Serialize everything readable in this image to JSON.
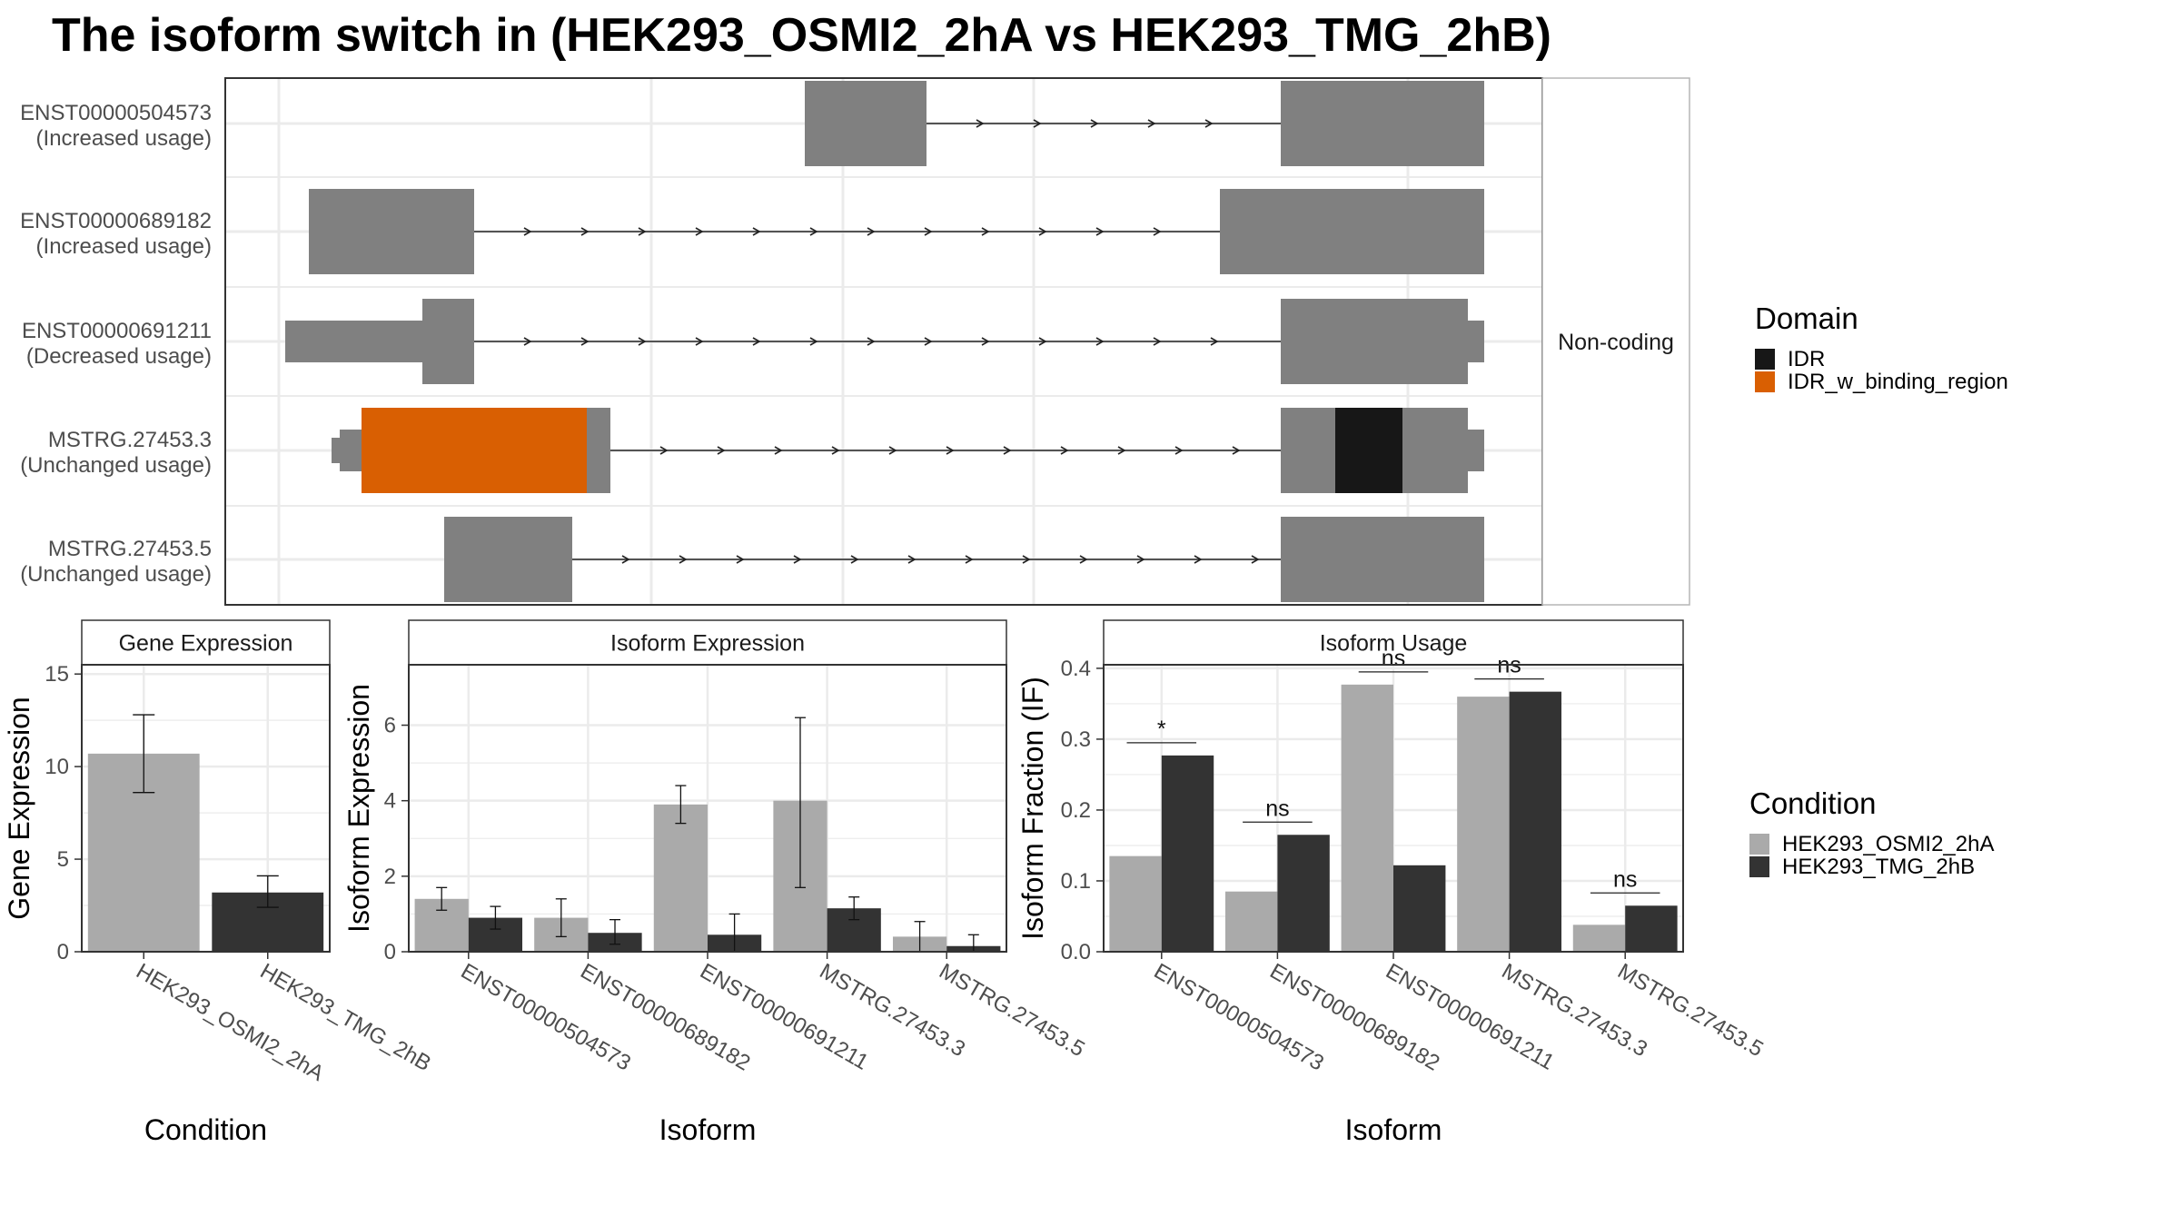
{
  "title": "The isoform switch in  (HEK293_OSMI2_2hA vs HEK293_TMG_2hB)",
  "colors": {
    "exon": "#808080",
    "idr": "#171717",
    "idr_binding": "#d95f02",
    "cond_a": "#aaaaaa",
    "cond_b": "#333333",
    "grid": "#ebebeb",
    "panel_border": "#333333",
    "strip_bg": "#ffffff"
  },
  "structure": {
    "strip_label": "Non-coding",
    "transcripts": [
      {
        "id": "ENST00000504573",
        "status": "(Increased usage)"
      },
      {
        "id": "ENST00000689182",
        "status": "(Increased usage)"
      },
      {
        "id": "ENST00000691211",
        "status": "(Decreased usage)"
      },
      {
        "id": "MSTRG.27453.3",
        "status": "(Unchanged usage)"
      },
      {
        "id": "MSTRG.27453.5",
        "status": "(Unchanged usage)"
      }
    ]
  },
  "legends": {
    "domain": {
      "title": "Domain",
      "items": [
        {
          "label": "IDR",
          "color": "#171717"
        },
        {
          "label": "IDR_w_binding_region",
          "color": "#d95f02"
        }
      ]
    },
    "condition": {
      "title": "Condition",
      "items": [
        {
          "label": "HEK293_OSMI2_2hA",
          "color": "#aaaaaa"
        },
        {
          "label": "HEK293_TMG_2hB",
          "color": "#333333"
        }
      ]
    }
  },
  "chart_data": [
    {
      "type": "bar",
      "title": "Gene Expression",
      "xlabel": "Condition",
      "ylabel": "Gene Expression",
      "ylim": [
        0,
        15.5
      ],
      "yticks": [
        0,
        5,
        10,
        15
      ],
      "categories": [
        "HEK293_OSMI2_2hA",
        "HEK293_TMG_2hB"
      ],
      "values": [
        10.7,
        3.2
      ],
      "err_low": [
        8.6,
        2.4
      ],
      "err_high": [
        12.8,
        4.1
      ]
    },
    {
      "type": "bar",
      "title": "Isoform Expression",
      "xlabel": "Isoform",
      "ylabel": "Isoform Expression",
      "ylim": [
        0,
        7.6
      ],
      "yticks": [
        0,
        2,
        4,
        6
      ],
      "categories": [
        "ENST00000504573",
        "ENST00000689182",
        "ENST00000691211",
        "MSTRG.27453.3",
        "MSTRG.27453.5"
      ],
      "series": [
        {
          "name": "HEK293_OSMI2_2hA",
          "values": [
            1.4,
            0.9,
            3.9,
            4.0,
            0.4
          ],
          "err_low": [
            1.1,
            0.4,
            3.4,
            1.7,
            0.0
          ],
          "err_high": [
            1.7,
            1.4,
            4.4,
            6.2,
            0.8
          ]
        },
        {
          "name": "HEK293_TMG_2hB",
          "values": [
            0.9,
            0.5,
            0.45,
            1.15,
            0.15
          ],
          "err_low": [
            0.6,
            0.2,
            0.0,
            0.85,
            0.0
          ],
          "err_high": [
            1.2,
            0.85,
            1.0,
            1.45,
            0.45
          ]
        }
      ]
    },
    {
      "type": "bar",
      "title": "Isoform Usage",
      "xlabel": "Isoform",
      "ylabel": "Isoform Fraction (IF)",
      "ylim": [
        0,
        0.405
      ],
      "yticks": [
        0.0,
        0.1,
        0.2,
        0.3,
        0.4
      ],
      "ytick_labels": [
        "0.0",
        "0.1",
        "0.2",
        "0.3",
        "0.4"
      ],
      "categories": [
        "ENST00000504573",
        "ENST00000689182",
        "ENST00000691211",
        "MSTRG.27453.3",
        "MSTRG.27453.5"
      ],
      "series": [
        {
          "name": "HEK293_OSMI2_2hA",
          "values": [
            0.135,
            0.085,
            0.377,
            0.36,
            0.038
          ]
        },
        {
          "name": "HEK293_TMG_2hB",
          "values": [
            0.277,
            0.165,
            0.122,
            0.367,
            0.065
          ]
        }
      ],
      "significance": [
        "*",
        "ns",
        "ns",
        "ns",
        "ns"
      ]
    }
  ]
}
